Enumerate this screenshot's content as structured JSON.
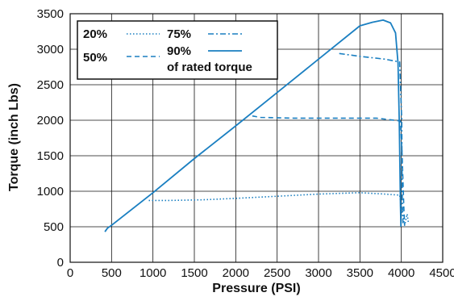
{
  "chart_data": {
    "type": "line",
    "title": "",
    "xlabel": "Pressure (PSI)",
    "ylabel": "Torque (inch Lbs)",
    "xlim": [
      0,
      4500
    ],
    "ylim": [
      0,
      3500
    ],
    "xticks": [
      0,
      500,
      1000,
      1500,
      2000,
      2500,
      3000,
      3500,
      4000,
      4500
    ],
    "yticks": [
      0,
      500,
      1000,
      1500,
      2000,
      2500,
      3000,
      3500
    ],
    "grid": true,
    "legend_position": "top-left",
    "legend_suffix": "of rated torque",
    "line_color": "#1a7fc1",
    "series": [
      {
        "name": "20%",
        "style": "dotted",
        "points": [
          [
            950,
            870
          ],
          [
            1200,
            870
          ],
          [
            1600,
            880
          ],
          [
            2000,
            900
          ],
          [
            2500,
            930
          ],
          [
            3000,
            960
          ],
          [
            3500,
            980
          ],
          [
            3800,
            960
          ],
          [
            3980,
            945
          ],
          [
            4010,
            700
          ],
          [
            4040,
            520
          ],
          [
            4070,
            680
          ],
          [
            4085,
            560
          ]
        ]
      },
      {
        "name": "50%",
        "style": "dashed",
        "points": [
          [
            2200,
            2060
          ],
          [
            2300,
            2040
          ],
          [
            2700,
            2030
          ],
          [
            3200,
            2030
          ],
          [
            3700,
            2030
          ],
          [
            3990,
            1990
          ],
          [
            4010,
            1500
          ],
          [
            4030,
            800
          ],
          [
            4040,
            520
          ]
        ]
      },
      {
        "name": "75%",
        "style": "dashdot",
        "points": [
          [
            3250,
            2940
          ],
          [
            3500,
            2900
          ],
          [
            3800,
            2860
          ],
          [
            3980,
            2820
          ],
          [
            4005,
            2000
          ],
          [
            4010,
            1000
          ],
          [
            4020,
            550
          ]
        ]
      },
      {
        "name": "90%",
        "style": "solid",
        "points": [
          [
            420,
            430
          ],
          [
            450,
            480
          ],
          [
            500,
            520
          ],
          [
            1000,
            980
          ],
          [
            1500,
            1460
          ],
          [
            2000,
            1920
          ],
          [
            2500,
            2390
          ],
          [
            3000,
            2860
          ],
          [
            3500,
            3330
          ],
          [
            3650,
            3380
          ],
          [
            3780,
            3410
          ],
          [
            3870,
            3370
          ],
          [
            3930,
            3230
          ],
          [
            3960,
            2800
          ],
          [
            3975,
            2000
          ],
          [
            3990,
            800
          ],
          [
            3995,
            500
          ]
        ]
      }
    ]
  }
}
